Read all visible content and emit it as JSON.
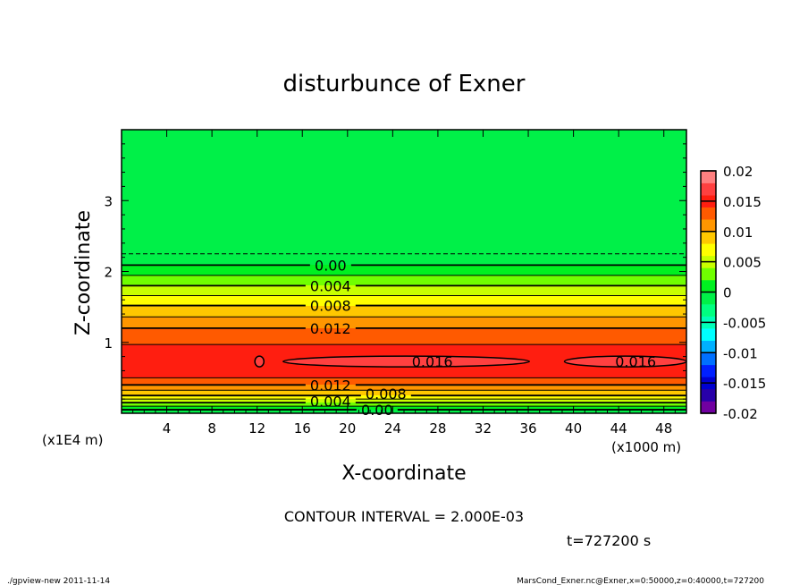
{
  "chart_data": {
    "type": "heatmap",
    "subtype": "filled-contour",
    "title": "disturbunce of Exner",
    "xlabel": "X-coordinate",
    "ylabel": "Z-coordinate",
    "x_unit": "(x1000 m)",
    "y_unit": "(x1E4 m)",
    "xlim": [
      0,
      50
    ],
    "ylim": [
      0,
      4
    ],
    "x_ticks": [
      4,
      8,
      12,
      16,
      20,
      24,
      28,
      32,
      36,
      40,
      44,
      48
    ],
    "y_ticks": [
      1,
      2,
      3
    ],
    "contour_interval_label": "CONTOUR INTERVAL = 2.000E-03",
    "contour_interval": 0.002,
    "time_label": "t=727200 s",
    "colorbar": {
      "min": -0.02,
      "max": 0.02,
      "step": 0.002,
      "tick_labels": [
        "0.02",
        "0.015",
        "0.01",
        "0.005",
        "0",
        "-0.005",
        "-0.01",
        "-0.015",
        "-0.02"
      ],
      "colors": [
        "#7000a0",
        "#2800a8",
        "#0000d0",
        "#0020ff",
        "#0070ff",
        "#00b0ff",
        "#00ffff",
        "#00ffb8",
        "#00ff80",
        "#00f048",
        "#00f020",
        "#70ff00",
        "#c8ff00",
        "#ffff00",
        "#ffc800",
        "#ff9600",
        "#ff5a00",
        "#ff1e10",
        "#ff4040",
        "#ff8080"
      ]
    },
    "profile_z": [
      0,
      0.05,
      0.15,
      0.25,
      0.4,
      0.5,
      0.73,
      0.97,
      1.2,
      1.52,
      1.8,
      2.09,
      2.25,
      2.6,
      4.0
    ],
    "profile_value": [
      -0.0005,
      0.0,
      0.004,
      0.008,
      0.012,
      0.014,
      0.0158,
      0.014,
      0.012,
      0.008,
      0.004,
      0.0,
      -0.002,
      -0.0012,
      -0.0008
    ],
    "closed_contours": [
      {
        "value": 0.016,
        "x_range": [
          11.8,
          12.6
        ],
        "z": 0.73
      },
      {
        "value": 0.016,
        "x_range": [
          14.3,
          36.1
        ],
        "z": 0.73
      },
      {
        "value": 0.016,
        "x_range": [
          39.2,
          50
        ],
        "z": 0.73
      }
    ],
    "contour_labels": [
      {
        "text": "0.00",
        "x": 18.5,
        "z": 2.09
      },
      {
        "text": "0.004",
        "x": 18.5,
        "z": 1.8
      },
      {
        "text": "0.008",
        "x": 18.5,
        "z": 1.52
      },
      {
        "text": "0.012",
        "x": 18.5,
        "z": 1.2
      },
      {
        "text": "0.016",
        "x": 27.5,
        "z": 0.73
      },
      {
        "text": "0.016",
        "x": 45.5,
        "z": 0.73
      },
      {
        "text": "0.012",
        "x": 18.5,
        "z": 0.4
      },
      {
        "text": "0.008",
        "x": 18.5,
        "z": 0.28
      },
      {
        "text": "0.004",
        "x": 18.5,
        "z": 0.17
      },
      {
        "text": "0.00",
        "x": 18.5,
        "z": 0.05
      }
    ]
  },
  "footer": {
    "left": "./gpview-new  2011-11-14",
    "right": "MarsCond_Exner.nc@Exner,x=0:50000,z=0:40000,t=727200"
  }
}
